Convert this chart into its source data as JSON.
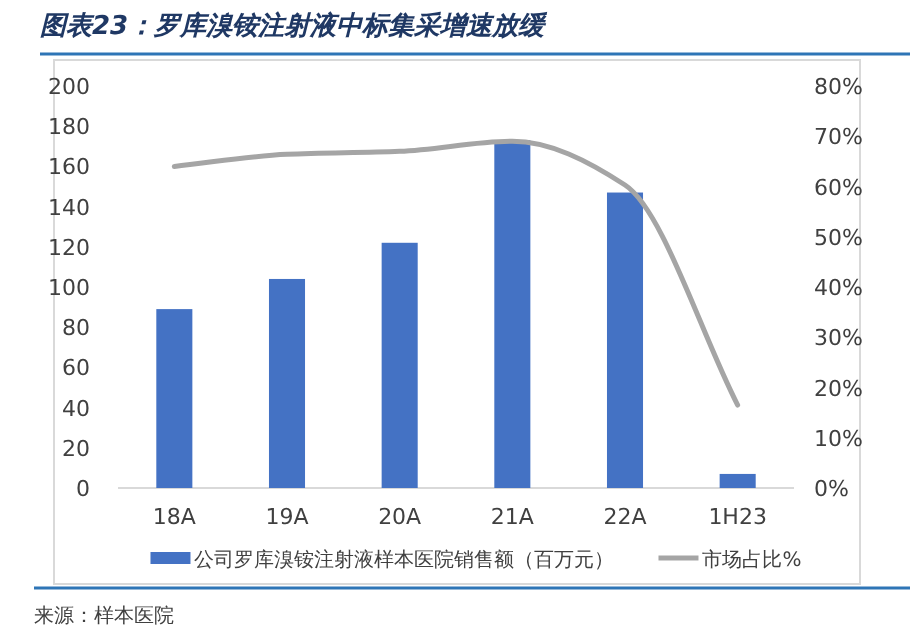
{
  "chart_data": {
    "type": "bar",
    "title": "图表23：罗库溴铵注射液中标集采增速放缓",
    "categories": [
      "18A",
      "19A",
      "20A",
      "21A",
      "22A",
      "1H23"
    ],
    "series": [
      {
        "name": "公司罗库溴铵注射液样本医院销售额（百万元）",
        "color": "#4472c4",
        "values": [
          89,
          104,
          122,
          173,
          147,
          7
        ]
      },
      {
        "name": "市场占比%",
        "type": "line",
        "axis": "y2",
        "color": "#a5a5a5",
        "values": [
          64,
          66.4,
          67,
          69,
          60.3,
          16.5
        ]
      }
    ],
    "ylim": [
      0,
      200
    ],
    "yticks": [
      0,
      20,
      40,
      60,
      80,
      100,
      120,
      140,
      160,
      180,
      200
    ],
    "y2lim": [
      0,
      80
    ],
    "y2ticks": [
      {
        "value": 0,
        "label": "0%"
      },
      {
        "value": 10,
        "label": "10%"
      },
      {
        "value": 20,
        "label": "20%"
      },
      {
        "value": 30,
        "label": "30%"
      },
      {
        "value": 40,
        "label": "40%"
      },
      {
        "value": 50,
        "label": "50%"
      },
      {
        "value": 60,
        "label": "60%"
      },
      {
        "value": 70,
        "label": "70%"
      },
      {
        "value": 80,
        "label": "80%"
      }
    ],
    "legend": "bottom",
    "annotations": [
      "来源：样本医院"
    ]
  }
}
